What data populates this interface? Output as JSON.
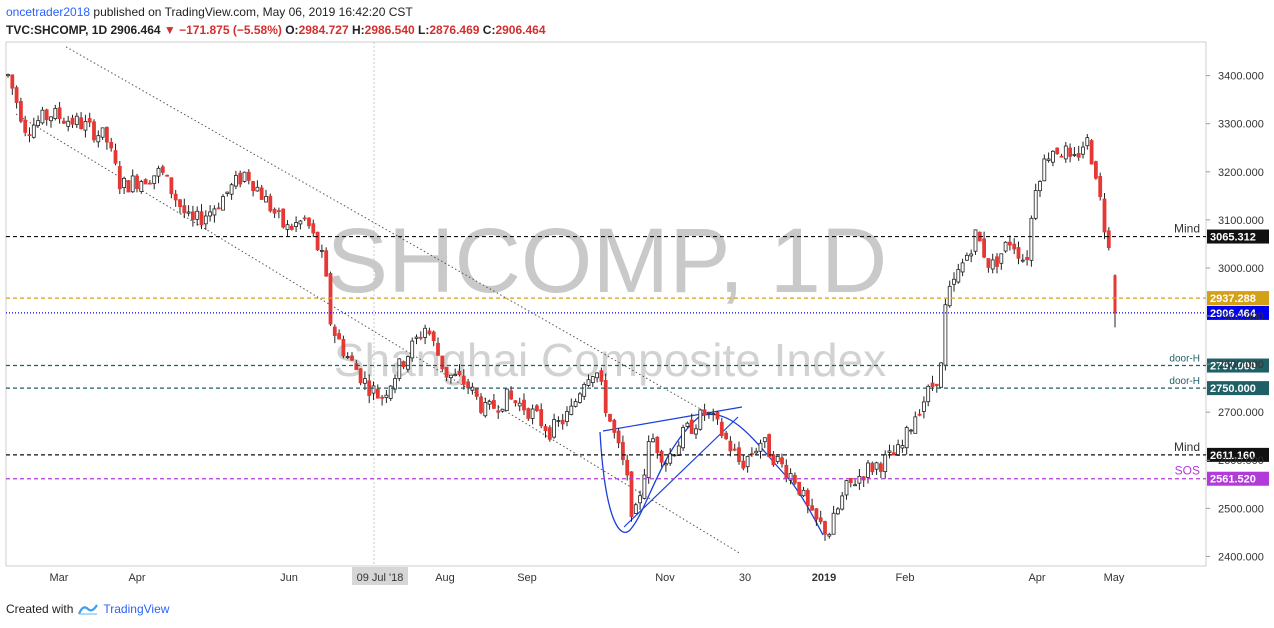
{
  "header": {
    "author": "oncetrader2018",
    "published": " published on TradingView.com, May 06, 2019 16:42:20 CST"
  },
  "quote": {
    "symbol": "TVC:SHCOMP, 1D",
    "last": "2906.464",
    "change": "−171.875 (−5.58%)",
    "open_label": "O:",
    "open": "2984.727",
    "high_label": "H:",
    "high": "2986.540",
    "low_label": "L:",
    "low": "2876.469",
    "close_label": "C:",
    "close": "2906.464"
  },
  "watermark": {
    "title": "SHCOMP, 1D",
    "subtitle": "Shanghai Composite Index"
  },
  "colors": {
    "up": "#ffffff",
    "down": "#e53935",
    "wick": "#222222",
    "gold": "#d4a017",
    "teal": "#1f5f66",
    "purple": "#b23ad9",
    "blue": "#0000ee",
    "black": "#111111"
  },
  "footer": {
    "created_with": "Created with",
    "brand": "TradingView"
  },
  "chart_data": {
    "type": "candlestick",
    "symbol": "TVC:SHCOMP",
    "ylim": [
      2380,
      3470
    ],
    "y_ticks": [
      {
        "v": 3400,
        "label": "3400.000"
      },
      {
        "v": 3300,
        "label": "3300.000"
      },
      {
        "v": 3200,
        "label": "3200.000"
      },
      {
        "v": 3100,
        "label": "3100.000"
      },
      {
        "v": 3000,
        "label": "3000.000"
      },
      {
        "v": 2900,
        "label": "2900.000"
      },
      {
        "v": 2800,
        "label": "2800.000"
      },
      {
        "v": 2700,
        "label": "2700.000"
      },
      {
        "v": 2600,
        "label": "2600.000"
      },
      {
        "v": 2500,
        "label": "2500.000"
      },
      {
        "v": 2400,
        "label": "2400.000"
      }
    ],
    "x_ticks": [
      {
        "t": 47,
        "label": "Mar"
      },
      {
        "t": 125,
        "label": "Apr"
      },
      {
        "t": 277,
        "label": "Jun"
      },
      {
        "t": 368,
        "label": "09 Jul '18",
        "highlight": true
      },
      {
        "t": 433,
        "label": "Aug"
      },
      {
        "t": 515,
        "label": "Sep"
      },
      {
        "t": 653,
        "label": "Nov"
      },
      {
        "t": 733,
        "label": "30"
      },
      {
        "t": 812,
        "label": "2019",
        "bold": true
      },
      {
        "t": 893,
        "label": "Feb"
      },
      {
        "t": 1025,
        "label": "Apr"
      },
      {
        "t": 1102,
        "label": "May"
      }
    ],
    "levels": [
      {
        "price": 3065.312,
        "label": "3065.312",
        "tag": "Mind",
        "style": "dashed",
        "color": "#111111",
        "tag_color": "#333333"
      },
      {
        "price": 2937.288,
        "label": "2937.288",
        "tag": "",
        "style": "dashed",
        "color": "#d4a017",
        "tag_color": ""
      },
      {
        "price": 2906.464,
        "label": "2906.464",
        "tag": "",
        "style": "dotted",
        "color": "#0000ee",
        "tag_color": ""
      },
      {
        "price": 2797.0,
        "label": "2797.000",
        "tag": "door-H",
        "style": "dashed",
        "color": "#1f5f66",
        "tag_color": "#1f5f66"
      },
      {
        "price": 2750.0,
        "label": "2750.000",
        "tag": "door-H",
        "style": "dashed",
        "color": "#1f5f66",
        "tag_color": "#1f5f66"
      },
      {
        "price": 2611.16,
        "label": "2611.160",
        "tag": "Mind",
        "style": "dashed",
        "color": "#111111",
        "tag_color": "#333333"
      },
      {
        "price": 2561.52,
        "label": "2561.520",
        "tag": "SOS",
        "style": "dashed",
        "color": "#b23ad9",
        "tag_color": "#b23ad9"
      }
    ],
    "trendlines": [
      {
        "name": "upper-downtrend",
        "x1": 60,
        "y1": 3460,
        "x2": 700,
        "y2": 2700
      },
      {
        "name": "lower-downtrend",
        "x1": 10,
        "y1": 3320,
        "x2": 735,
        "y2": 2405
      }
    ],
    "anchors": [
      [
        2,
        3400
      ],
      [
        20,
        3290
      ],
      [
        45,
        3320
      ],
      [
        75,
        3300
      ],
      [
        100,
        3270
      ],
      [
        115,
        3170
      ],
      [
        155,
        3200
      ],
      [
        185,
        3090
      ],
      [
        205,
        3120
      ],
      [
        240,
        3200
      ],
      [
        260,
        3140
      ],
      [
        280,
        3080
      ],
      [
        300,
        3100
      ],
      [
        318,
        3010
      ],
      [
        325,
        2880
      ],
      [
        340,
        2820
      ],
      [
        360,
        2760
      ],
      [
        375,
        2730
      ],
      [
        395,
        2800
      ],
      [
        420,
        2880
      ],
      [
        440,
        2780
      ],
      [
        460,
        2760
      ],
      [
        480,
        2700
      ],
      [
        500,
        2730
      ],
      [
        520,
        2710
      ],
      [
        545,
        2660
      ],
      [
        565,
        2700
      ],
      [
        580,
        2780
      ],
      [
        590,
        2790
      ],
      [
        600,
        2710
      ],
      [
        620,
        2570
      ],
      [
        628,
        2470
      ],
      [
        645,
        2650
      ],
      [
        660,
        2600
      ],
      [
        680,
        2660
      ],
      [
        700,
        2700
      ],
      [
        715,
        2660
      ],
      [
        735,
        2590
      ],
      [
        755,
        2640
      ],
      [
        775,
        2590
      ],
      [
        790,
        2560
      ],
      [
        805,
        2480
      ],
      [
        823,
        2450
      ],
      [
        840,
        2540
      ],
      [
        860,
        2580
      ],
      [
        880,
        2600
      ],
      [
        895,
        2620
      ],
      [
        910,
        2700
      ],
      [
        925,
        2750
      ],
      [
        935,
        2790
      ],
      [
        940,
        2930
      ],
      [
        955,
        3000
      ],
      [
        970,
        3070
      ],
      [
        985,
        3000
      ],
      [
        1005,
        3060
      ],
      [
        1020,
        3010
      ],
      [
        1030,
        3180
      ],
      [
        1045,
        3250
      ],
      [
        1060,
        3240
      ],
      [
        1065,
        3210
      ],
      [
        1080,
        3270
      ],
      [
        1090,
        3200
      ],
      [
        1098,
        3090
      ],
      [
        1103,
        3060
      ],
      [
        1108,
        2960
      ],
      [
        1109,
        2906
      ]
    ]
  }
}
